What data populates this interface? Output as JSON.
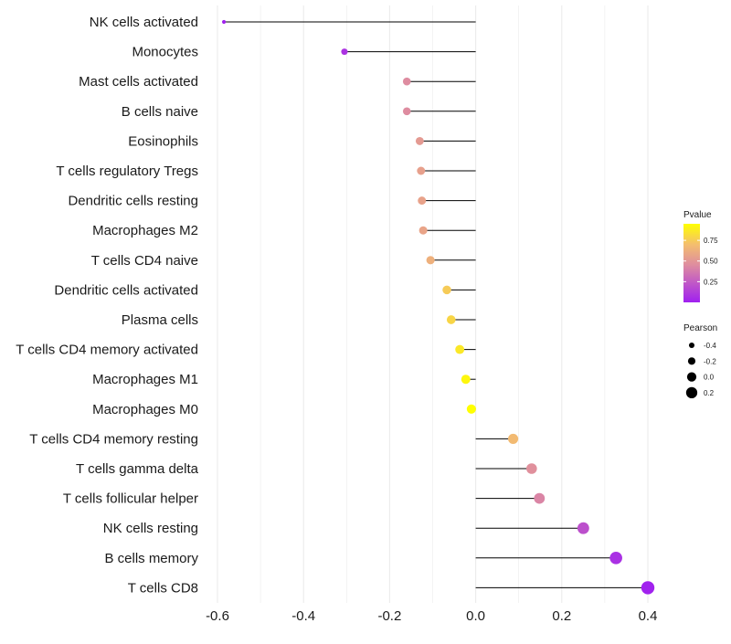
{
  "chart_data": {
    "type": "lollipop",
    "categories": [
      "NK cells activated",
      "Monocytes",
      "Mast cells activated",
      "B cells naive",
      "Eosinophils",
      "T cells regulatory  Tregs ",
      "Dendritic cells resting",
      "Macrophages M2",
      "T cells CD4 naive",
      "Dendritic cells activated",
      "Plasma cells",
      "T cells CD4 memory activated",
      "Macrophages M1",
      "Macrophages M0",
      "T cells CD4 memory resting",
      "T cells gamma delta",
      "T cells follicular helper",
      "NK cells resting",
      "B cells memory",
      "T cells CD8"
    ],
    "series": [
      {
        "name": "Pearson",
        "values": [
          -0.585,
          -0.305,
          -0.16,
          -0.16,
          -0.13,
          -0.127,
          -0.125,
          -0.122,
          -0.105,
          -0.067,
          -0.057,
          -0.037,
          -0.023,
          -0.01,
          0.087,
          0.13,
          0.148,
          0.25,
          0.326,
          0.4
        ]
      },
      {
        "name": "Pvalue",
        "values": [
          0.01,
          0.08,
          0.45,
          0.45,
          0.52,
          0.55,
          0.56,
          0.57,
          0.63,
          0.75,
          0.79,
          0.86,
          0.92,
          0.97,
          0.68,
          0.47,
          0.42,
          0.2,
          0.07,
          0.01
        ]
      }
    ],
    "xlim": [
      -0.6,
      0.4
    ],
    "x_ticks": [
      "-0.6",
      "-0.4",
      "-0.2",
      "0.0",
      "0.2",
      "0.4"
    ],
    "x_tick_values": [
      -0.6,
      -0.4,
      -0.2,
      0.0,
      0.2,
      0.4
    ],
    "grid": true,
    "legends": {
      "color": {
        "title": "Pvalue",
        "ticks": [
          "0.75",
          "0.50",
          "0.25"
        ],
        "tick_values": [
          0.75,
          0.5,
          0.25
        ],
        "range": [
          0.0,
          0.95
        ],
        "low_color": "#a020f0",
        "high_color": "#ffff00"
      },
      "size": {
        "title": "Pearson",
        "ticks": [
          "-0.4",
          "-0.2",
          "0.0",
          "0.2"
        ],
        "tick_values": [
          -0.4,
          -0.2,
          0.0,
          0.2
        ]
      }
    },
    "colors": {
      "segment": "#000000",
      "grid": "#ebebeb"
    }
  }
}
